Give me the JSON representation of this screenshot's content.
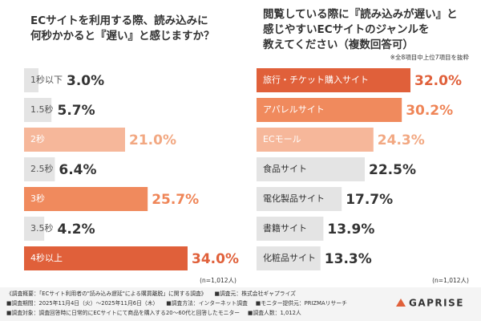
{
  "chart_data": [
    {
      "type": "bar",
      "orientation": "horizontal",
      "title": [
        "ECサイトを利用する際、読み込みに",
        "何秒かかると『遅い』と感じますか？"
      ],
      "categories": [
        "1秒以下",
        "1.5秒",
        "2秒",
        "2.5秒",
        "3秒",
        "3.5秒",
        "4秒以上"
      ],
      "values": [
        3.0,
        5.7,
        21.0,
        6.4,
        25.7,
        4.2,
        34.0
      ],
      "value_labels": [
        "3.0%",
        "5.7%",
        "21.0%",
        "6.4%",
        "25.7%",
        "4.2%",
        "34.0%"
      ],
      "colors": [
        "#e4e4e4",
        "#e4e4e4",
        "#f6b79a",
        "#e4e4e4",
        "#f08a5d",
        "#e4e4e4",
        "#e0603a"
      ],
      "label_colors": [
        "#555555",
        "#555555",
        "#ffffff",
        "#555555",
        "#ffffff",
        "#555555",
        "#ffffff"
      ],
      "value_label_colors": [
        "#333333",
        "#333333",
        "#f2a882",
        "#333333",
        "#ef8557",
        "#333333",
        "#e0603a"
      ],
      "sample": "(n=1,012人)"
    },
    {
      "type": "bar",
      "orientation": "horizontal",
      "title": [
        "閲覧している際に『読み込みが遅い』と",
        "感じやすいECサイトのジャンルを",
        "教えてください（複数回答可）"
      ],
      "note": "※全8項目中上位7項目を抜粋",
      "categories": [
        "旅行・チケット購入サイト",
        "アパレルサイト",
        "ECモール",
        "食品サイト",
        "電化製品サイト",
        "書籍サイト",
        "化粧品サイト"
      ],
      "values": [
        32.0,
        30.2,
        24.3,
        22.5,
        17.7,
        13.9,
        13.3
      ],
      "value_labels": [
        "32.0%",
        "30.2%",
        "24.3%",
        "22.5%",
        "17.7%",
        "13.9%",
        "13.3%"
      ],
      "colors": [
        "#e0603a",
        "#f08a5d",
        "#f6b79a",
        "#e4e4e4",
        "#e4e4e4",
        "#e4e4e4",
        "#e4e4e4"
      ],
      "label_colors": [
        "#ffffff",
        "#ffffff",
        "#ffffff",
        "#333333",
        "#333333",
        "#333333",
        "#333333"
      ],
      "value_label_colors": [
        "#e0603a",
        "#ef8557",
        "#f2a882",
        "#333333",
        "#333333",
        "#333333",
        "#333333"
      ],
      "sample": "(n=1,012人)"
    }
  ],
  "footer": {
    "lines": [
      [
        "《調査概要：「ECサイト利用者の\"読み込み遅延\"による購買離脱」に関する調査》",
        "■調査元：株式会社ギャプライズ"
      ],
      [
        "■調査期間：2025年11月4日（火）〜2025年11月6日（木）",
        "■調査方法：インターネット調査",
        "■モニター提供元：PRIZMAリサーチ"
      ],
      [
        "■調査対象：調査回答時に日常的にECサイトにて商品を購入する20〜60代と回答したモニター",
        "■調査人数：1,012人"
      ]
    ],
    "logo": "GAPRISE"
  }
}
